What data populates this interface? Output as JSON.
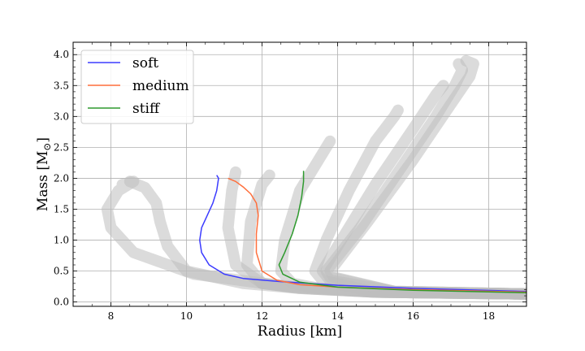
{
  "chart_data": {
    "type": "line",
    "title": "",
    "xlabel": "Radius [km]",
    "ylabel": "Mass [M",
    "ylabel_sub": "⊙",
    "ylabel_close": "]",
    "xlim": [
      7.0,
      19.0
    ],
    "ylim": [
      -0.07,
      4.2
    ],
    "x_ticks": [
      8,
      10,
      12,
      14,
      16,
      18
    ],
    "x_tick_labels": [
      "8",
      "10",
      "12",
      "14",
      "16",
      "18"
    ],
    "y_ticks": [
      0.0,
      0.5,
      1.0,
      1.5,
      2.0,
      2.5,
      3.0,
      3.5,
      4.0
    ],
    "y_tick_labels": [
      "0.0",
      "0.5",
      "1.0",
      "1.5",
      "2.0",
      "2.5",
      "3.0",
      "3.5",
      "4.0"
    ],
    "grid": true,
    "legend_position": "top-left",
    "background_band": {
      "color": "#bdbdbd",
      "representative_curves": [
        {
          "x": [
            19.0,
            15.0,
            13.0,
            11.5,
            10.0,
            9.5,
            9.3,
            9.2,
            8.9,
            8.5
          ],
          "y": [
            0.13,
            0.16,
            0.22,
            0.3,
            0.5,
            0.9,
            1.3,
            1.6,
            1.85,
            1.95
          ]
        },
        {
          "x": [
            19.0,
            15.0,
            12.8,
            10.2,
            8.6,
            8.0,
            7.9,
            8.2,
            8.6,
            8.3
          ],
          "y": [
            0.13,
            0.17,
            0.24,
            0.45,
            0.8,
            1.2,
            1.5,
            1.8,
            1.95,
            1.9
          ]
        },
        {
          "x": [
            19.0,
            15.0,
            13.2,
            12.0,
            11.3,
            11.1,
            11.2,
            11.3
          ],
          "y": [
            0.13,
            0.16,
            0.22,
            0.3,
            0.6,
            1.2,
            1.8,
            2.1
          ]
        },
        {
          "x": [
            19.0,
            15.0,
            13.5,
            12.8,
            12.5,
            12.6,
            13.0,
            13.6,
            13.8
          ],
          "y": [
            0.13,
            0.16,
            0.22,
            0.3,
            0.5,
            1.0,
            1.8,
            2.4,
            2.6
          ]
        },
        {
          "x": [
            19.0,
            15.0,
            13.6,
            13.4,
            13.7,
            14.3,
            15.0,
            15.5,
            15.6
          ],
          "y": [
            0.13,
            0.16,
            0.35,
            0.5,
            1.0,
            1.8,
            2.6,
            3.0,
            3.1
          ]
        },
        {
          "x": [
            19.0,
            15.5,
            13.8,
            13.6,
            14.2,
            15.0,
            16.0,
            16.6,
            16.8
          ],
          "y": [
            0.13,
            0.17,
            0.35,
            0.5,
            1.1,
            1.9,
            2.8,
            3.35,
            3.5
          ]
        },
        {
          "x": [
            19.0,
            15.5,
            13.8,
            13.7,
            14.6,
            15.6,
            16.6,
            17.1,
            17.3,
            17.2
          ],
          "y": [
            0.13,
            0.17,
            0.4,
            0.5,
            1.2,
            2.1,
            3.0,
            3.5,
            3.75,
            3.85
          ]
        },
        {
          "x": [
            19.0,
            15.5,
            13.9,
            13.8,
            14.8,
            16.0,
            17.0,
            17.5,
            17.6,
            17.4
          ],
          "y": [
            0.13,
            0.17,
            0.4,
            0.5,
            1.3,
            2.3,
            3.2,
            3.65,
            3.85,
            3.9
          ]
        },
        {
          "x": [
            19.0,
            15.0,
            13.0,
            12.0,
            11.6,
            11.7,
            12.0,
            12.2
          ],
          "y": [
            0.13,
            0.16,
            0.22,
            0.3,
            0.6,
            1.3,
            1.9,
            2.05
          ]
        }
      ]
    },
    "series": [
      {
        "name": "soft",
        "color": "#3b3bff",
        "x": [
          19.0,
          16.0,
          14.0,
          12.5,
          11.5,
          11.0,
          10.6,
          10.4,
          10.35,
          10.4,
          10.55,
          10.7,
          10.8,
          10.85,
          10.8
        ],
        "y": [
          0.17,
          0.22,
          0.27,
          0.33,
          0.38,
          0.45,
          0.6,
          0.8,
          1.0,
          1.2,
          1.4,
          1.6,
          1.8,
          2.0,
          2.05
        ]
      },
      {
        "name": "medium",
        "color": "#ff6f3c",
        "x": [
          19.0,
          16.0,
          14.0,
          13.0,
          12.4,
          12.0,
          11.85,
          11.85,
          11.9,
          11.85,
          11.7,
          11.5,
          11.3,
          11.1
        ],
        "y": [
          0.16,
          0.2,
          0.24,
          0.28,
          0.35,
          0.5,
          0.8,
          1.1,
          1.4,
          1.6,
          1.75,
          1.86,
          1.95,
          2.0
        ]
      },
      {
        "name": "stiff",
        "color": "#2e9a2e",
        "x": [
          19.0,
          16.0,
          14.0,
          13.0,
          12.55,
          12.45,
          12.6,
          12.8,
          12.95,
          13.05,
          13.1,
          13.1
        ],
        "y": [
          0.15,
          0.19,
          0.24,
          0.32,
          0.45,
          0.6,
          0.8,
          1.1,
          1.4,
          1.7,
          1.95,
          2.12
        ]
      }
    ]
  }
}
